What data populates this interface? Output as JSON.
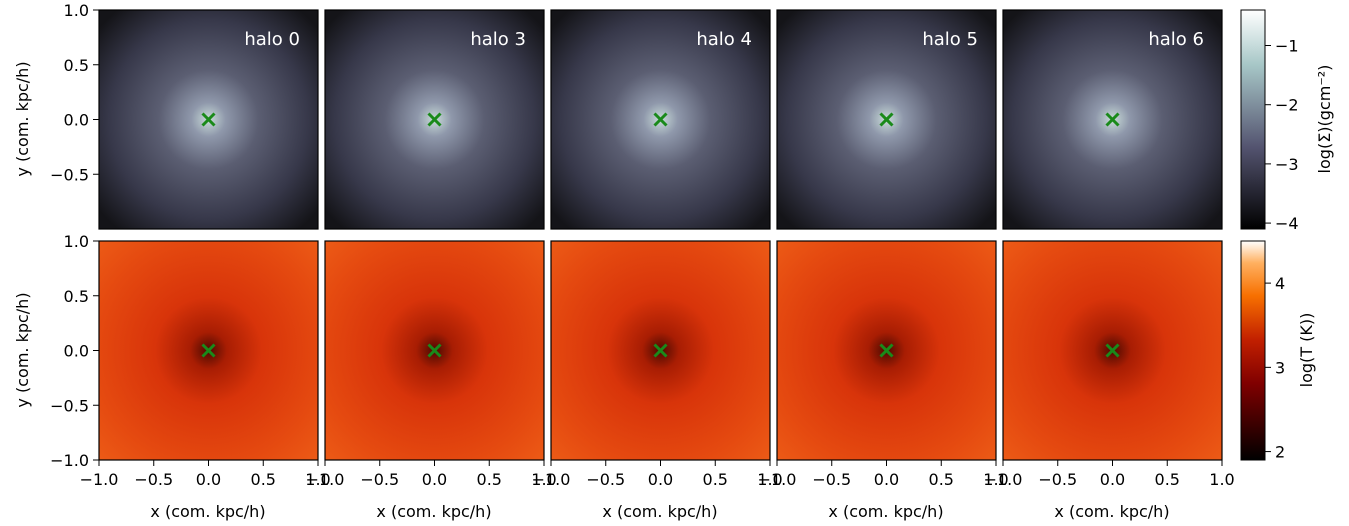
{
  "chart_data": [
    {
      "type": "heatmap",
      "quantity": "surface density",
      "colormap": "bone",
      "panels": [
        {
          "label": "halo 0",
          "x_center": 0.0,
          "y_center": 0.0
        },
        {
          "label": "halo 3",
          "x_center": 0.0,
          "y_center": 0.0
        },
        {
          "label": "halo 4",
          "x_center": 0.0,
          "y_center": 0.0
        },
        {
          "label": "halo 5",
          "x_center": 0.0,
          "y_center": 0.0
        },
        {
          "label": "halo 6",
          "x_center": 0.0,
          "y_center": 0.0
        }
      ],
      "ylabel": "y (com. kpc/h)",
      "xlim": [
        -1.0,
        1.0
      ],
      "ylim": [
        -1.0,
        1.0
      ],
      "yticks": [
        "1.0",
        "0.5",
        "0.0",
        "−0.5"
      ],
      "colorbar": {
        "label": "log(Σ)(gcm⁻²)",
        "range": [
          -4.1,
          -0.4
        ],
        "ticks": [
          "−1",
          "−2",
          "−3",
          "−4"
        ]
      },
      "marker": "green x at halo center",
      "marker_color": "#1a8a1a"
    },
    {
      "type": "heatmap",
      "quantity": "temperature",
      "colormap": "gist_heat",
      "panels": [
        {
          "x_center": 0.0,
          "y_center": 0.0
        },
        {
          "x_center": 0.0,
          "y_center": 0.0
        },
        {
          "x_center": 0.0,
          "y_center": 0.0
        },
        {
          "x_center": 0.0,
          "y_center": 0.0
        },
        {
          "x_center": 0.0,
          "y_center": 0.0
        }
      ],
      "xlabel": "x (com. kpc/h)",
      "ylabel": "y (com. kpc/h)",
      "xlim": [
        -1.0,
        1.0
      ],
      "ylim": [
        -1.0,
        1.0
      ],
      "xticks": [
        "−1.0",
        "−0.5",
        "0.0",
        "0.5",
        "1.0"
      ],
      "yticks": [
        "1.0",
        "0.5",
        "0.0",
        "−0.5",
        "−1.0"
      ],
      "colorbar": {
        "label": "log(T (K))",
        "range": [
          1.9,
          4.5
        ],
        "ticks": [
          "4",
          "3",
          "2"
        ]
      },
      "marker": "green x at halo center",
      "marker_color": "#1a8a1a"
    }
  ]
}
